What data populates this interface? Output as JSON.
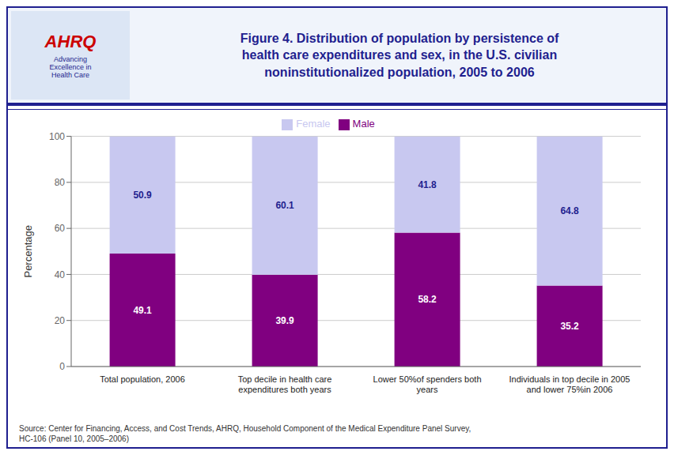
{
  "chart_data": {
    "type": "bar",
    "title": "Figure 4.  Distribution of population by persistence of\nhealth care expenditures and sex, in the U.S. civilian\nnoninstitutionalized population, 2005 to 2006",
    "categories": [
      "Total population, 2006",
      "Top decile in health care\nexpenditures both years",
      "Lower 50%of spenders both\nyears",
      "Individuals in top decile in 2005\nand lower 75%in 2006"
    ],
    "series": [
      {
        "name": "Male",
        "color": "#800080",
        "values": [
          49.1,
          39.9,
          58.2,
          35.2
        ]
      },
      {
        "name": "Female",
        "color": "#c8c8f0",
        "values": [
          50.9,
          60.1,
          41.8,
          64.8
        ]
      }
    ],
    "ylabel": "Percentage",
    "ylim": [
      0,
      100
    ],
    "yticks": [
      0,
      20,
      40,
      60,
      80,
      100
    ],
    "stacked": true,
    "grid": true,
    "legend": "top",
    "data_labels": true,
    "annotations": [
      "AHRQ",
      "Advancing\nExcellence in\nHealth Care",
      "Source: Center for Financing, Access, and Cost Trends, AHRQ, Household Component of the Medical Expenditure Panel Survey,\nHC-106 (Panel 10, 2005–2006)"
    ]
  }
}
